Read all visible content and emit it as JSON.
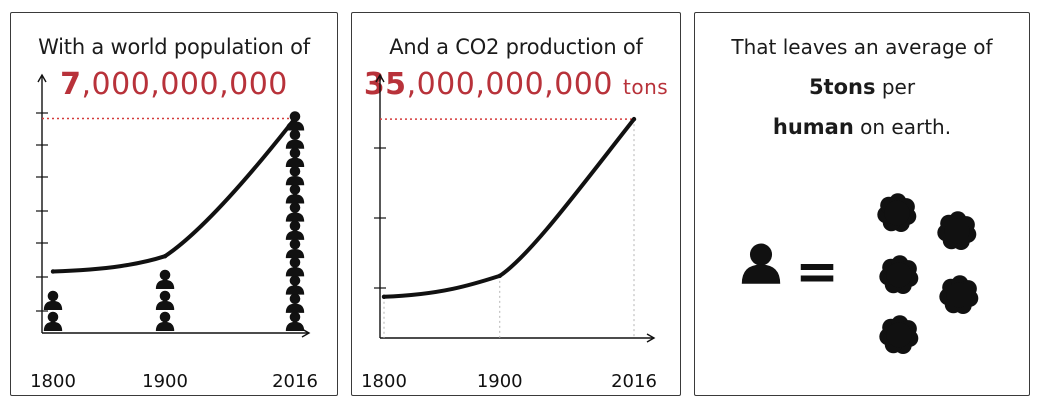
{
  "colors": {
    "accent": "#b8323a",
    "ink": "#111111",
    "dotted": "#d43c3c",
    "guide": "#b5b5b5"
  },
  "panels": {
    "population": {
      "heading": "With a world population of",
      "number_lead": "7",
      "number_rest": ",000,000,000"
    },
    "co2": {
      "heading": "And a CO2 production of",
      "number_lead": "35",
      "number_rest": ",000,000,000",
      "number_unit": "tons"
    },
    "average": {
      "line1": "That leaves an average of",
      "line2_strong": "5tons",
      "line2_rest": " per",
      "line3_strong": "human",
      "line3_rest": " on earth.",
      "equals": "=",
      "icons": [
        "person-icon",
        "co2-cloud-icon"
      ],
      "cloud_count": 5
    }
  },
  "chart_data": [
    {
      "type": "line",
      "title": "With a world population of 7,000,000,000",
      "x": [
        1800,
        1900,
        2016
      ],
      "x_tick_labels": [
        "1800",
        "1900",
        "2016"
      ],
      "series": [
        {
          "values": [
            1000000000,
            1600000000,
            7000000000
          ]
        }
      ],
      "ylim": [
        0,
        8000000000
      ],
      "grid": false,
      "pictograph": {
        "icon": "person-icon",
        "counts": [
          2,
          3,
          12
        ]
      }
    },
    {
      "type": "line",
      "title": "And a CO2 production of 35,000,000,000 tons",
      "x": [
        1800,
        1900,
        2016
      ],
      "x_tick_labels": [
        "1800",
        "1900",
        "2016"
      ],
      "series": [
        {
          "values": [
            1000000000,
            5000000000,
            35000000000
          ]
        }
      ],
      "ylim": [
        0,
        40000000000
      ],
      "grid": false
    }
  ]
}
